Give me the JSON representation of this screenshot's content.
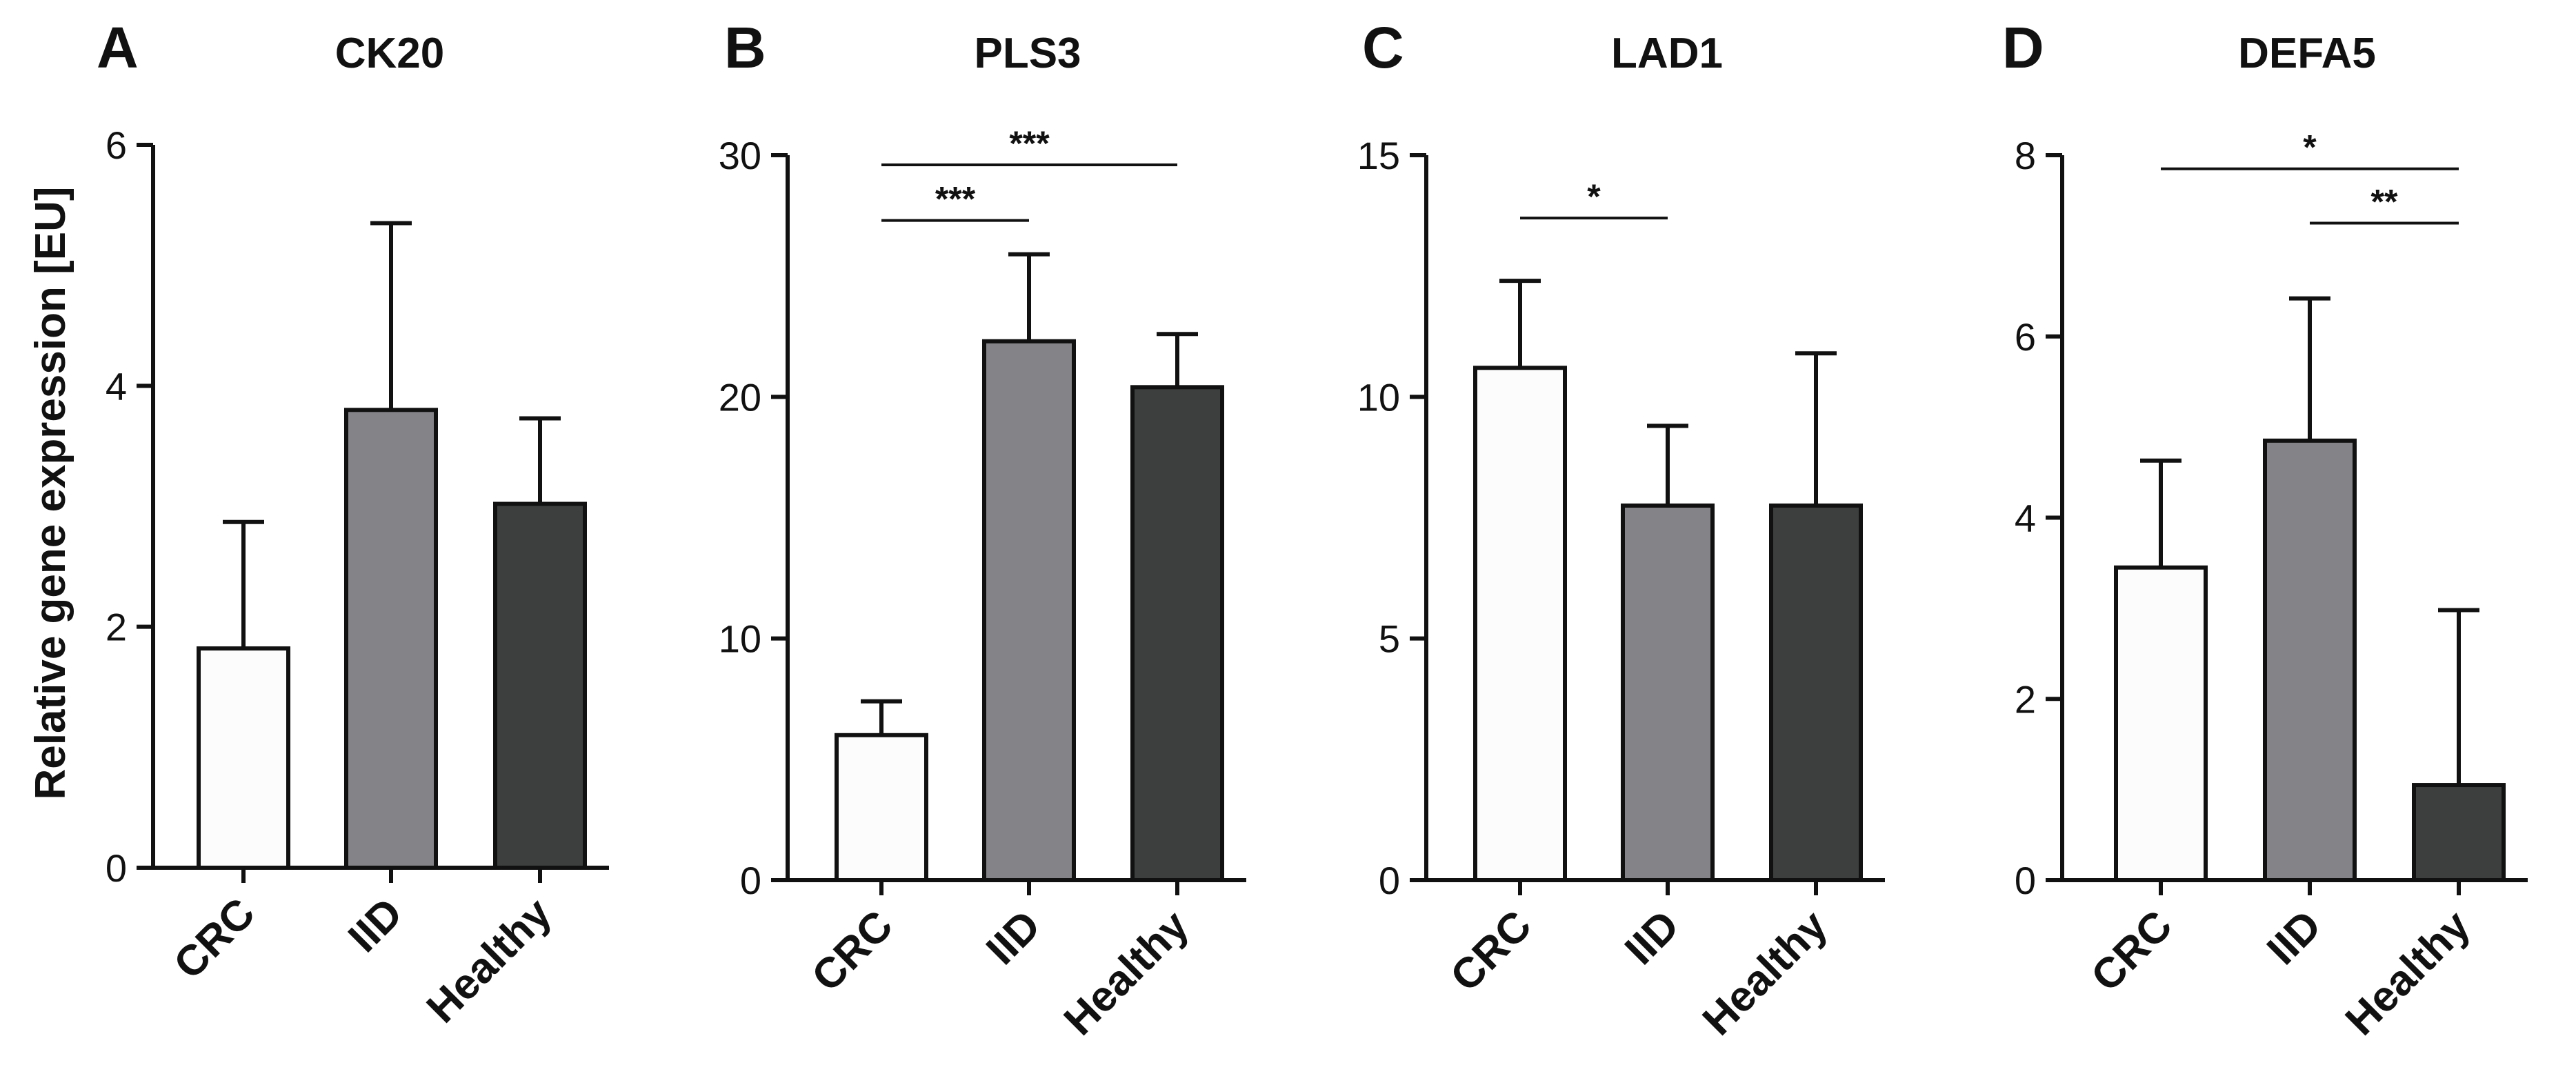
{
  "ylabel": "Relative gene expression [EU]",
  "colors": {
    "CRC": "#fcfcfc",
    "IID": "#848387",
    "Healthy": "#3d3f3e",
    "stroke": "#111111"
  },
  "chart_data": [
    {
      "type": "bar",
      "panel": "A",
      "title": "CK20",
      "categories": [
        "CRC",
        "IID",
        "Healthy"
      ],
      "values": [
        1.82,
        3.8,
        3.02
      ],
      "errors": [
        1.05,
        1.55,
        0.71
      ],
      "ylim": [
        0,
        6
      ],
      "yticks": [
        0,
        2,
        4,
        6
      ],
      "significance": []
    },
    {
      "type": "bar",
      "panel": "B",
      "title": "PLS3",
      "categories": [
        "CRC",
        "IID",
        "Healthy"
      ],
      "values": [
        6.0,
        22.3,
        20.4
      ],
      "errors": [
        1.4,
        3.6,
        2.2
      ],
      "ylim": [
        0,
        30
      ],
      "yticks": [
        0,
        10,
        20,
        30
      ],
      "significance": [
        {
          "from": 0,
          "to": 2,
          "y": 29.6,
          "label": "***"
        },
        {
          "from": 0,
          "to": 1,
          "y": 27.3,
          "label": "***"
        }
      ]
    },
    {
      "type": "bar",
      "panel": "C",
      "title": "LAD1",
      "categories": [
        "CRC",
        "IID",
        "Healthy"
      ],
      "values": [
        10.6,
        7.75,
        7.75
      ],
      "errors": [
        1.8,
        1.65,
        3.15
      ],
      "ylim": [
        0,
        15
      ],
      "yticks": [
        0,
        5,
        10,
        15
      ],
      "significance": [
        {
          "from": 0,
          "to": 1,
          "y": 13.7,
          "label": "*"
        }
      ]
    },
    {
      "type": "bar",
      "panel": "D",
      "title": "DEFA5",
      "categories": [
        "CRC",
        "IID",
        "Healthy"
      ],
      "values": [
        3.45,
        4.85,
        1.05
      ],
      "errors": [
        1.18,
        1.57,
        1.93
      ],
      "ylim": [
        0,
        8
      ],
      "yticks": [
        0,
        2,
        4,
        6,
        8
      ],
      "significance": [
        {
          "from": 0,
          "to": 2,
          "y": 7.85,
          "label": "*"
        },
        {
          "from": 1,
          "to": 2,
          "y": 7.25,
          "label": "**"
        }
      ]
    }
  ]
}
